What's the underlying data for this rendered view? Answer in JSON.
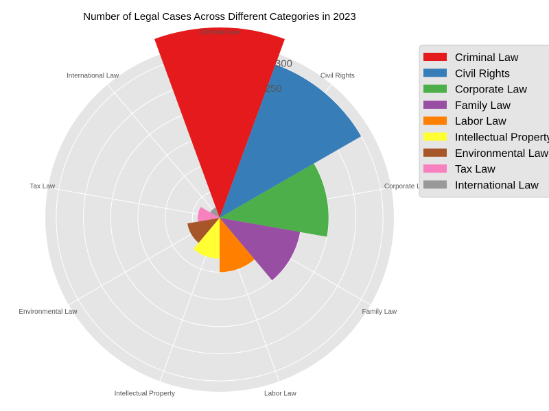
{
  "chart_data": {
    "type": "bar",
    "subtype": "polar",
    "title": "Number of Legal Cases Across Different Categories in 2023",
    "categories": [
      "Criminal Law",
      "Civil Rights",
      "Corporate Law",
      "Family Law",
      "Labor Law",
      "Intellectual Property",
      "Environmental Law",
      "Tax Law",
      "International Law"
    ],
    "values": [
      350,
      300,
      200,
      150,
      100,
      75,
      60,
      40,
      20
    ],
    "colors": [
      "#e41a1c",
      "#377eb8",
      "#4daf4a",
      "#984ea3",
      "#ff7f00",
      "#ffff33",
      "#a65628",
      "#f781bf",
      "#999999"
    ],
    "rlim": [
      0,
      320
    ],
    "r_ticks": [
      {
        "value": 50,
        "label": ""
      },
      {
        "value": 100,
        "label": ""
      },
      {
        "value": 150,
        "label": ""
      },
      {
        "value": 200,
        "label": ""
      },
      {
        "value": 250,
        "label": "250"
      },
      {
        "value": 300,
        "label": "300"
      }
    ],
    "legend": {
      "placement": "right",
      "entries": [
        "Criminal Law",
        "Civil Rights",
        "Corporate Law",
        "Family Law",
        "Labor Law",
        "Intellectual Property",
        "Environmental Law",
        "Tax Law",
        "International Law"
      ]
    },
    "grid": true
  }
}
